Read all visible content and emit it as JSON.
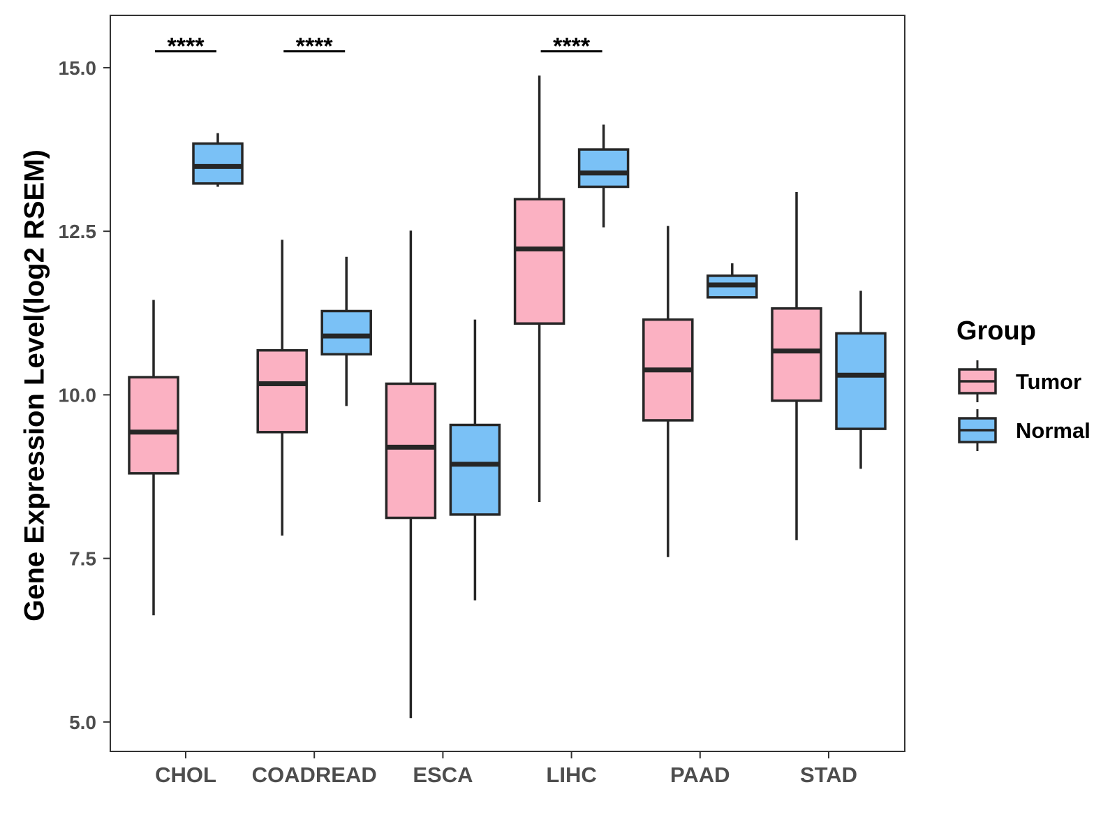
{
  "chart_data": {
    "type": "boxplot",
    "title": "",
    "xlabel": "",
    "ylabel": "Gene Expression Level(log2 RSEM)",
    "ylim": [
      4.55,
      15.8
    ],
    "yticks": [
      5.0,
      7.5,
      10.0,
      12.5,
      15.0
    ],
    "ytick_labels": [
      "5.0",
      "7.5",
      "10.0",
      "12.5",
      "15.0"
    ],
    "categories": [
      "CHOL",
      "COADREAD",
      "ESCA",
      "LIHC",
      "PAAD",
      "STAD"
    ],
    "legend": {
      "title": "Group",
      "position": "right",
      "entries": [
        "Tumor",
        "Normal"
      ]
    },
    "series": [
      {
        "name": "Tumor",
        "color": "#FBB1C2",
        "boxes": [
          {
            "min": 6.63,
            "q1": 8.8,
            "median": 9.43,
            "q3": 10.27,
            "max": 11.45
          },
          {
            "min": 7.85,
            "q1": 9.43,
            "median": 10.17,
            "q3": 10.68,
            "max": 12.37
          },
          {
            "min": 5.06,
            "q1": 8.12,
            "median": 9.2,
            "q3": 10.17,
            "max": 12.51
          },
          {
            "min": 8.36,
            "q1": 11.09,
            "median": 12.23,
            "q3": 12.99,
            "max": 14.88
          },
          {
            "min": 7.52,
            "q1": 9.61,
            "median": 10.38,
            "q3": 11.15,
            "max": 12.58
          },
          {
            "min": 7.78,
            "q1": 9.91,
            "median": 10.67,
            "q3": 11.32,
            "max": 13.1
          }
        ]
      },
      {
        "name": "Normal",
        "color": "#7AC1F6",
        "boxes": [
          {
            "min": 13.18,
            "q1": 13.23,
            "median": 13.49,
            "q3": 13.84,
            "max": 14.0
          },
          {
            "min": 9.83,
            "q1": 10.62,
            "median": 10.9,
            "q3": 11.28,
            "max": 12.11
          },
          {
            "min": 6.86,
            "q1": 8.17,
            "median": 8.94,
            "q3": 9.54,
            "max": 11.15
          },
          {
            "min": 12.56,
            "q1": 13.18,
            "median": 13.39,
            "q3": 13.75,
            "max": 14.13
          },
          {
            "min": 11.49,
            "q1": 11.49,
            "median": 11.68,
            "q3": 11.82,
            "max": 12.01
          },
          {
            "min": 8.87,
            "q1": 9.48,
            "median": 10.3,
            "q3": 10.94,
            "max": 11.59
          }
        ]
      }
    ],
    "annotations": [
      {
        "category": "CHOL",
        "text": "****",
        "y": 15.25
      },
      {
        "category": "COADREAD",
        "text": "****",
        "y": 15.25
      },
      {
        "category": "LIHC",
        "text": "****",
        "y": 15.25
      }
    ],
    "grid": false
  },
  "colors": {
    "tumor": "#FBB1C2",
    "normal": "#7AC1F6",
    "box_outline": "#262626",
    "panel_border": "#333333",
    "tick_text": "#4d4d4d"
  }
}
